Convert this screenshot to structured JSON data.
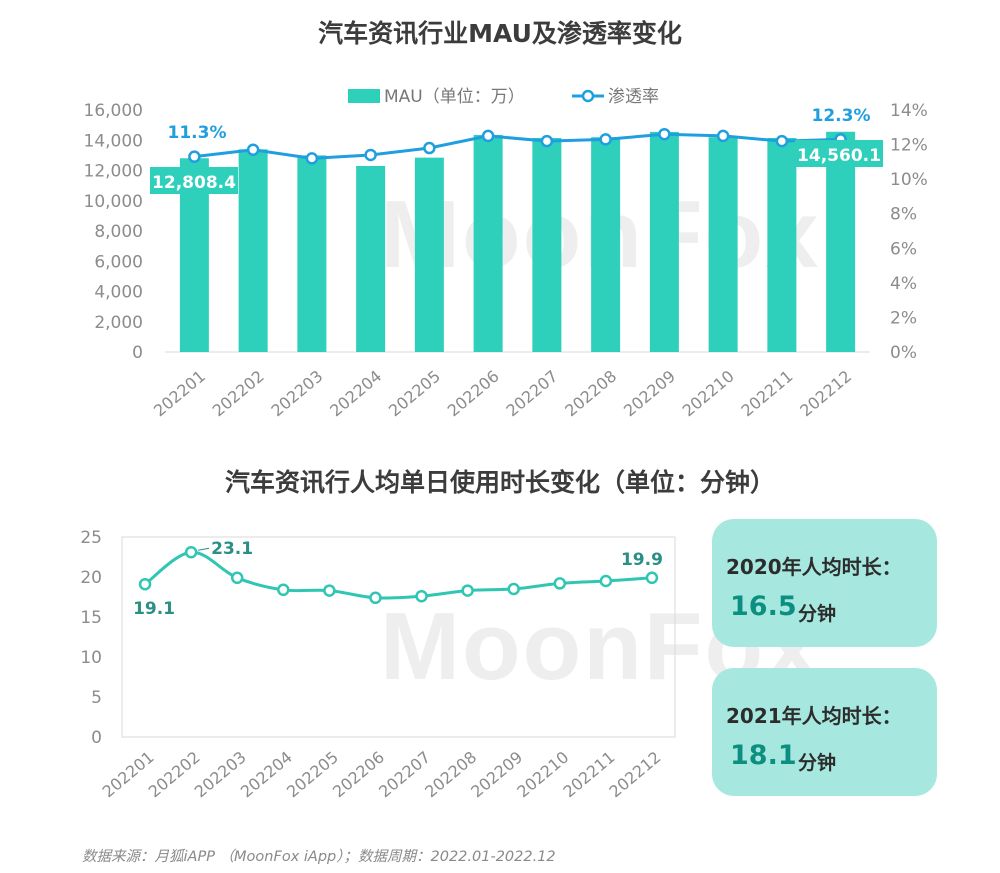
{
  "watermark": "MoonFox",
  "footer": "数据来源：月狐iAPP （MoonFox iApp）；数据周期：2022.01-2022.12",
  "cards": [
    {
      "label": "2020年人均时长：",
      "value": "16.5",
      "unit": "分钟"
    },
    {
      "label": "2021年人均时长：",
      "value": "18.1",
      "unit": "分钟"
    }
  ],
  "colors": {
    "bar": "#2ecfbb",
    "line1": "#1f9fe0",
    "line2": "#2fc6b3",
    "label_box": "#2ecfbb"
  },
  "chart_data": [
    {
      "type": "bar",
      "title": "汽车资讯行业MAU及渗透率变化",
      "categories": [
        "202201",
        "202202",
        "202203",
        "202204",
        "202205",
        "202206",
        "202207",
        "202208",
        "202209",
        "202210",
        "202211",
        "202212"
      ],
      "series": [
        {
          "name": "MAU（单位：万）",
          "type": "bar",
          "axis": "left",
          "values": [
            12808.4,
            13400,
            13000,
            12300,
            12850,
            14350,
            14150,
            14200,
            14550,
            14200,
            14150,
            14560.1
          ]
        },
        {
          "name": "渗透率",
          "type": "line",
          "axis": "right",
          "values": [
            11.3,
            11.7,
            11.2,
            11.4,
            11.8,
            12.5,
            12.2,
            12.3,
            12.6,
            12.5,
            12.2,
            12.3
          ]
        }
      ],
      "yticks_left": [
        "0",
        "2,000",
        "4,000",
        "6,000",
        "8,000",
        "10,000",
        "12,000",
        "14,000",
        "16,000"
      ],
      "yticks_right": [
        "0%",
        "2%",
        "4%",
        "6%",
        "8%",
        "10%",
        "12%",
        "14%"
      ],
      "ylim_left": [
        0,
        16000
      ],
      "ylim_right": [
        0,
        14
      ],
      "data_labels": {
        "first_bar": "12,808.4",
        "last_bar": "14,560.1",
        "first_line": "11.3%",
        "last_line": "12.3%"
      },
      "legend": "top-center",
      "grid": false
    },
    {
      "type": "line",
      "title": "汽车资讯行人均单日使用时长变化（单位：分钟）",
      "categories": [
        "202201",
        "202202",
        "202203",
        "202204",
        "202205",
        "202206",
        "202207",
        "202208",
        "202209",
        "202210",
        "202211",
        "202212"
      ],
      "values": [
        19.1,
        23.1,
        19.9,
        18.4,
        18.3,
        17.4,
        17.6,
        18.3,
        18.5,
        19.2,
        19.5,
        19.9
      ],
      "yticks": [
        "0",
        "5",
        "10",
        "15",
        "20",
        "25"
      ],
      "ylim": [
        0,
        25
      ],
      "data_labels": {
        "first": "19.1",
        "max": "23.1",
        "last": "19.9"
      },
      "grid": false
    }
  ]
}
